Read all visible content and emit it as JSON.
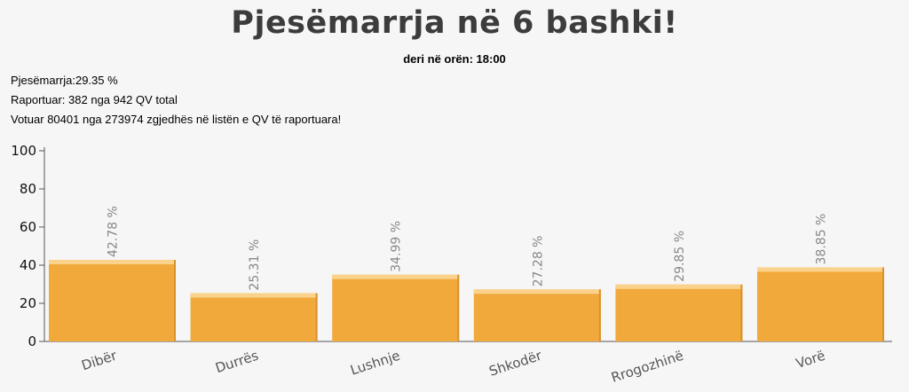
{
  "header": {
    "title": "Pjesëmarrja në 6 bashki!",
    "subtitle": "deri në orën: 18:00"
  },
  "stats": {
    "turnout": "Pjesëmarrja:29.35 %",
    "reported": "Raportuar: 382 nga 942 QV total",
    "voted": "Votuar 80401 nga 273974 zgjedhës në listën e QV të raportuara!"
  },
  "colors": {
    "bar": "#f0a93a",
    "bar_highlight": "#fbd28c",
    "bar_shadow": "#d8922c",
    "axis": "#555555"
  },
  "chart_data": {
    "type": "bar",
    "categories": [
      "Dibër",
      "Durrës",
      "Lushnje",
      "Shkodër",
      "Rrogozhinë",
      "Vorë"
    ],
    "values": [
      42.78,
      25.31,
      34.99,
      27.28,
      29.85,
      38.85
    ],
    "value_labels": [
      "42.78 %",
      "25.31 %",
      "34.99 %",
      "27.28 %",
      "29.85 %",
      "38.85 %"
    ],
    "yticks": [
      0,
      20,
      40,
      60,
      80,
      100
    ],
    "ylim": [
      0,
      100
    ],
    "grid": false
  }
}
